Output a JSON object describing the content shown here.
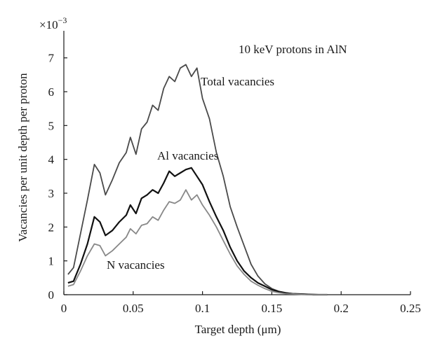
{
  "chart_data": {
    "type": "line",
    "title": "10 keV protons in AlN",
    "xlabel": "Target depth (μm)",
    "ylabel": "Vacancies per unit depth per proton",
    "y_multiplier": "×10",
    "y_multiplier_exp": "−3",
    "xlim": [
      0,
      0.25
    ],
    "ylim": [
      0,
      7.8
    ],
    "x_ticks": [
      "0",
      "0.05",
      "0.1",
      "0.15",
      "0.2",
      "0.25"
    ],
    "y_ticks": [
      "0",
      "1",
      "2",
      "3",
      "4",
      "5",
      "6",
      "7"
    ],
    "grid": false,
    "series": [
      {
        "name": "Total vacancies",
        "color": "#4a4a4a",
        "x": [
          0.003,
          0.007,
          0.012,
          0.017,
          0.022,
          0.026,
          0.03,
          0.035,
          0.04,
          0.045,
          0.048,
          0.052,
          0.056,
          0.06,
          0.064,
          0.068,
          0.072,
          0.076,
          0.08,
          0.084,
          0.088,
          0.092,
          0.096,
          0.1,
          0.105,
          0.11,
          0.115,
          0.12,
          0.125,
          0.13,
          0.135,
          0.14,
          0.145,
          0.15,
          0.155,
          0.16,
          0.165,
          0.17,
          0.175,
          0.18,
          0.185,
          0.19
        ],
        "values": [
          0.6,
          0.8,
          1.8,
          2.8,
          3.85,
          3.6,
          2.95,
          3.4,
          3.9,
          4.2,
          4.65,
          4.15,
          4.9,
          5.1,
          5.6,
          5.45,
          6.1,
          6.45,
          6.3,
          6.7,
          6.8,
          6.45,
          6.7,
          5.8,
          5.2,
          4.2,
          3.5,
          2.6,
          2.0,
          1.45,
          0.9,
          0.55,
          0.32,
          0.18,
          0.1,
          0.06,
          0.03,
          0.02,
          0.01,
          0.01,
          0.0,
          0.0
        ]
      },
      {
        "name": "Al vacancies",
        "color": "#111111",
        "x": [
          0.003,
          0.007,
          0.012,
          0.017,
          0.022,
          0.026,
          0.03,
          0.035,
          0.04,
          0.045,
          0.048,
          0.052,
          0.056,
          0.06,
          0.064,
          0.068,
          0.072,
          0.076,
          0.08,
          0.084,
          0.088,
          0.092,
          0.096,
          0.1,
          0.105,
          0.11,
          0.115,
          0.12,
          0.125,
          0.13,
          0.135,
          0.14,
          0.145,
          0.15,
          0.155,
          0.16,
          0.165,
          0.17,
          0.175,
          0.18,
          0.185,
          0.19
        ],
        "values": [
          0.35,
          0.4,
          0.9,
          1.5,
          2.3,
          2.15,
          1.75,
          1.9,
          2.15,
          2.35,
          2.65,
          2.4,
          2.85,
          2.95,
          3.1,
          3.0,
          3.3,
          3.65,
          3.5,
          3.6,
          3.7,
          3.75,
          3.5,
          3.25,
          2.75,
          2.3,
          1.9,
          1.4,
          1.0,
          0.7,
          0.5,
          0.35,
          0.25,
          0.15,
          0.09,
          0.05,
          0.03,
          0.02,
          0.01,
          0.0,
          0.0,
          0.0
        ]
      },
      {
        "name": "N vacancies",
        "color": "#888888",
        "x": [
          0.003,
          0.007,
          0.012,
          0.017,
          0.022,
          0.026,
          0.03,
          0.035,
          0.04,
          0.045,
          0.048,
          0.052,
          0.056,
          0.06,
          0.064,
          0.068,
          0.072,
          0.076,
          0.08,
          0.084,
          0.088,
          0.092,
          0.096,
          0.1,
          0.105,
          0.11,
          0.115,
          0.12,
          0.125,
          0.13,
          0.135,
          0.14,
          0.145,
          0.15,
          0.155,
          0.16,
          0.165,
          0.17,
          0.175,
          0.18,
          0.185,
          0.19
        ],
        "values": [
          0.25,
          0.3,
          0.7,
          1.15,
          1.5,
          1.45,
          1.15,
          1.3,
          1.5,
          1.7,
          1.95,
          1.8,
          2.05,
          2.1,
          2.3,
          2.2,
          2.5,
          2.75,
          2.7,
          2.8,
          3.1,
          2.8,
          2.95,
          2.65,
          2.35,
          2.0,
          1.6,
          1.2,
          0.85,
          0.6,
          0.4,
          0.28,
          0.18,
          0.1,
          0.06,
          0.03,
          0.02,
          0.01,
          0.0,
          0.0,
          0.0,
          0.0
        ]
      }
    ],
    "annotations": [
      {
        "text": "Total vacancies",
        "series": "Total vacancies"
      },
      {
        "text": "Al vacancies",
        "series": "Al vacancies"
      },
      {
        "text": "N vacancies",
        "series": "N vacancies"
      }
    ]
  }
}
